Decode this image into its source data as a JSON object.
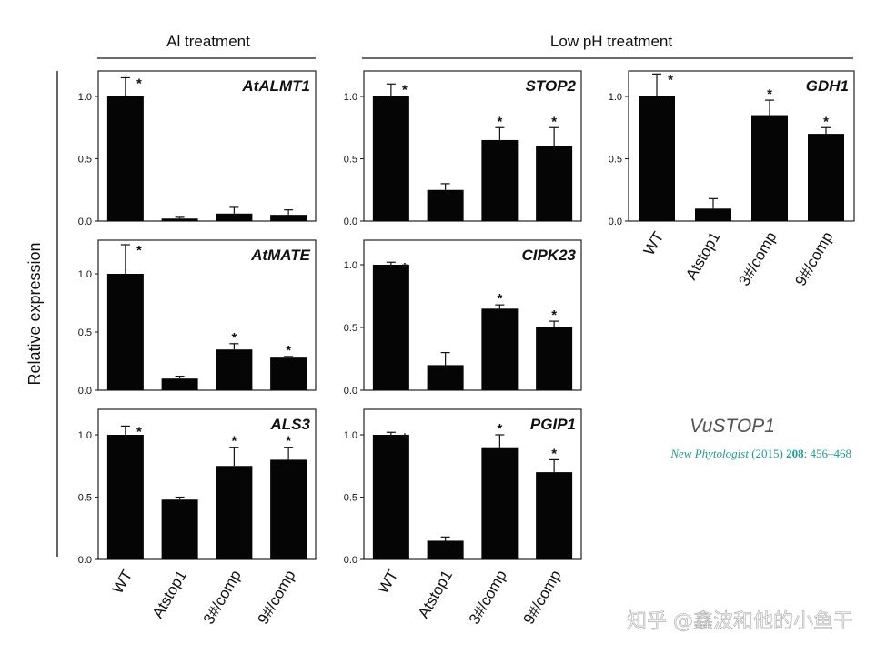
{
  "figure": {
    "headers": {
      "al": "Al treatment",
      "lowph": "Low pH treatment"
    },
    "ylabel": "Relative expression",
    "title": "VuSTOP1",
    "citation": {
      "journal": "New Phytologist",
      "year": "(2015)",
      "volume": "208",
      "pages": ": 456–468"
    },
    "watermark": "知乎 @鑫波和他的小鱼干"
  },
  "chart_data": [
    {
      "type": "bar",
      "gene": "AtALMT1",
      "categories": [
        "WT",
        "Atstop1",
        "3#/comp",
        "9#/comp"
      ],
      "values": [
        1.0,
        0.02,
        0.06,
        0.05
      ],
      "errors": [
        0.15,
        0.01,
        0.05,
        0.04
      ],
      "significance": [
        "*",
        "",
        "",
        ""
      ],
      "yticks": [
        "0.0",
        "0.5",
        "1.0"
      ],
      "ylim": [
        0,
        1.25
      ],
      "group": "Al treatment"
    },
    {
      "type": "bar",
      "gene": "AtMATE",
      "categories": [
        "WT",
        "Atstop1",
        "3#/comp",
        "9#/comp"
      ],
      "values": [
        1.0,
        0.1,
        0.35,
        0.28
      ],
      "errors": [
        0.25,
        0.02,
        0.05,
        0.01
      ],
      "significance": [
        "*",
        "",
        "*",
        "*"
      ],
      "yticks": [
        "0.0",
        "0.5",
        "1.0"
      ],
      "ylim": [
        0,
        1.3
      ],
      "group": "Al treatment"
    },
    {
      "type": "bar",
      "gene": "ALS3",
      "categories": [
        "WT",
        "Atstop1",
        "3#/comp",
        "9#/comp"
      ],
      "values": [
        1.0,
        0.48,
        0.75,
        0.8
      ],
      "errors": [
        0.07,
        0.02,
        0.15,
        0.1
      ],
      "significance": [
        "*",
        "",
        "*",
        "*"
      ],
      "yticks": [
        "0.0",
        "0.5",
        "1.0"
      ],
      "ylim": [
        0,
        1.2
      ],
      "group": "Al treatment"
    },
    {
      "type": "bar",
      "gene": "STOP2",
      "categories": [
        "WT",
        "Atstop1",
        "3#/comp",
        "9#/comp"
      ],
      "values": [
        1.0,
        0.25,
        0.65,
        0.6
      ],
      "errors": [
        0.1,
        0.05,
        0.1,
        0.15
      ],
      "significance": [
        "*",
        "",
        "*",
        "*"
      ],
      "yticks": [
        "0.0",
        "0.5",
        "1.0"
      ],
      "ylim": [
        0,
        1.2
      ],
      "group": "Low pH treatment"
    },
    {
      "type": "bar",
      "gene": "CIPK23",
      "categories": [
        "WT",
        "Atstop1",
        "3#/comp",
        "9#/comp"
      ],
      "values": [
        1.0,
        0.2,
        0.65,
        0.5
      ],
      "errors": [
        0.02,
        0.1,
        0.03,
        0.05
      ],
      "significance": [
        "*",
        "",
        "*",
        "*"
      ],
      "yticks": [
        "0.0",
        "0.5",
        "1.0"
      ],
      "ylim": [
        0,
        1.2
      ],
      "group": "Low pH treatment"
    },
    {
      "type": "bar",
      "gene": "PGIP1",
      "categories": [
        "WT",
        "Atstop1",
        "3#/comp",
        "9#/comp"
      ],
      "values": [
        1.0,
        0.15,
        0.9,
        0.7
      ],
      "errors": [
        0.02,
        0.03,
        0.1,
        0.1
      ],
      "significance": [
        "*",
        "",
        "*",
        "*"
      ],
      "yticks": [
        "0.0",
        "0.5",
        "1.0"
      ],
      "ylim": [
        0,
        1.2
      ],
      "group": "Low pH treatment"
    },
    {
      "type": "bar",
      "gene": "GDH1",
      "categories": [
        "WT",
        "Atstop1",
        "3#/comp",
        "9#/comp"
      ],
      "values": [
        1.0,
        0.1,
        0.85,
        0.7
      ],
      "errors": [
        0.18,
        0.08,
        0.12,
        0.05
      ],
      "significance": [
        "*",
        "",
        "*",
        "*"
      ],
      "yticks": [
        "0.0",
        "0.5",
        "1.0"
      ],
      "ylim": [
        0,
        1.2
      ],
      "group": "Low pH treatment"
    }
  ]
}
